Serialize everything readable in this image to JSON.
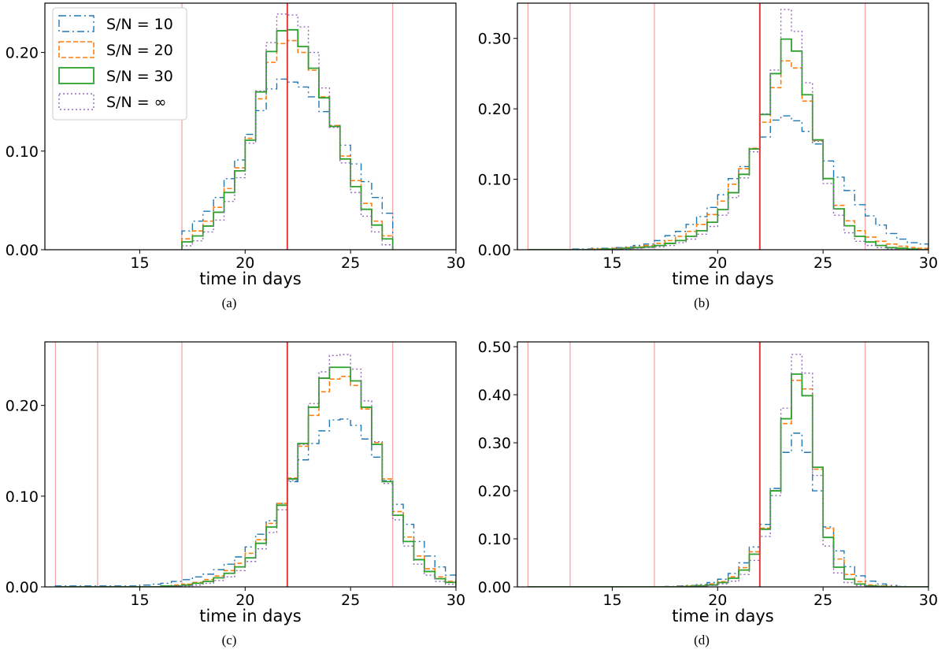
{
  "chart_data": [
    {
      "type": "step-histogram",
      "caption": "(a)",
      "xlabel": "time in days",
      "ylabel": "",
      "xlim": [
        10.5,
        30
      ],
      "ylim": [
        0,
        0.25
      ],
      "xticks": [
        "15",
        "20",
        "25",
        "30"
      ],
      "yticks": [
        "0.00",
        "0.10",
        "0.20"
      ],
      "bins_start": 17,
      "bin_width": 0.5,
      "vlines_light": [
        17,
        27
      ],
      "vline_main": 22,
      "legend": {
        "placement": "top-left",
        "entries": [
          "S/N = 10",
          "S/N = 20",
          "S/N = 30",
          "S/N = ∞"
        ]
      },
      "series": [
        {
          "name": "S/N = 10",
          "values": [
            0.019,
            0.029,
            0.039,
            0.053,
            0.072,
            0.091,
            0.117,
            0.141,
            0.163,
            0.173,
            0.17,
            0.165,
            0.155,
            0.14,
            0.126,
            0.106,
            0.087,
            0.069,
            0.053,
            0.037
          ]
        },
        {
          "name": "S/N = 20",
          "values": [
            0.011,
            0.019,
            0.029,
            0.043,
            0.062,
            0.083,
            0.113,
            0.153,
            0.19,
            0.209,
            0.212,
            0.2,
            0.182,
            0.155,
            0.126,
            0.095,
            0.07,
            0.047,
            0.029,
            0.014
          ]
        },
        {
          "name": "S/N = 30",
          "values": [
            0.008,
            0.014,
            0.024,
            0.038,
            0.058,
            0.08,
            0.111,
            0.16,
            0.201,
            0.222,
            0.223,
            0.206,
            0.184,
            0.154,
            0.125,
            0.092,
            0.064,
            0.041,
            0.025,
            0.011
          ]
        },
        {
          "name": "S/N = ∞",
          "values": [
            0.004,
            0.009,
            0.018,
            0.03,
            0.049,
            0.073,
            0.108,
            0.161,
            0.21,
            0.239,
            0.238,
            0.226,
            0.2,
            0.164,
            0.124,
            0.088,
            0.058,
            0.034,
            0.018,
            0.005
          ]
        }
      ]
    },
    {
      "type": "step-histogram",
      "caption": "(b)",
      "xlabel": "time in days",
      "ylabel": "",
      "xlim": [
        10.5,
        30
      ],
      "ylim": [
        0,
        0.35
      ],
      "xticks": [
        "15",
        "20",
        "25",
        "30"
      ],
      "yticks": [
        "0.00",
        "0.10",
        "0.20",
        "0.30"
      ],
      "bins_start": 11,
      "bin_width": 0.5,
      "vlines_light": [
        11,
        13,
        17,
        27
      ],
      "vline_main": 22,
      "series": [
        {
          "name": "S/N = 10",
          "values": [
            0,
            0,
            0,
            0,
            0.001,
            0.001,
            0.002,
            0.002,
            0.003,
            0.004,
            0.006,
            0.008,
            0.013,
            0.02,
            0.026,
            0.036,
            0.047,
            0.06,
            0.078,
            0.101,
            0.118,
            0.143,
            0.16,
            0.184,
            0.19,
            0.183,
            0.168,
            0.15,
            0.126,
            0.103,
            0.084,
            0.064,
            0.048,
            0.035,
            0.023,
            0.015,
            0.01,
            0.008,
            0.006,
            0.004,
            0.002,
            0.001
          ]
        },
        {
          "name": "S/N = 20",
          "values": [
            0,
            0,
            0,
            0,
            0,
            0,
            0.001,
            0.001,
            0.002,
            0.003,
            0.004,
            0.006,
            0.009,
            0.013,
            0.019,
            0.026,
            0.036,
            0.05,
            0.069,
            0.093,
            0.115,
            0.144,
            0.181,
            0.23,
            0.268,
            0.258,
            0.211,
            0.155,
            0.101,
            0.063,
            0.041,
            0.027,
            0.018,
            0.012,
            0.008,
            0.005,
            0.003,
            0.002,
            0.001,
            0,
            0,
            0
          ]
        },
        {
          "name": "S/N = 30",
          "values": [
            0,
            0,
            0,
            0,
            0,
            0,
            0,
            0.001,
            0.001,
            0.002,
            0.003,
            0.004,
            0.006,
            0.009,
            0.013,
            0.019,
            0.027,
            0.039,
            0.057,
            0.081,
            0.107,
            0.143,
            0.192,
            0.25,
            0.299,
            0.282,
            0.22,
            0.156,
            0.101,
            0.058,
            0.034,
            0.019,
            0.011,
            0.006,
            0.003,
            0.002,
            0.001,
            0,
            0,
            0,
            0,
            0
          ]
        },
        {
          "name": "S/N = ∞",
          "values": [
            0,
            0,
            0,
            0,
            0,
            0,
            0,
            0,
            0.001,
            0.001,
            0.002,
            0.003,
            0.004,
            0.006,
            0.01,
            0.015,
            0.022,
            0.033,
            0.049,
            0.074,
            0.102,
            0.139,
            0.193,
            0.255,
            0.341,
            0.31,
            0.237,
            0.154,
            0.094,
            0.049,
            0.024,
            0.012,
            0.006,
            0.003,
            0.001,
            0,
            0,
            0,
            0,
            0,
            0,
            0
          ]
        }
      ]
    },
    {
      "type": "step-histogram",
      "caption": "(c)",
      "xlabel": "time in days",
      "ylabel": "",
      "xlim": [
        10.5,
        30
      ],
      "ylim": [
        0,
        0.27
      ],
      "xticks": [
        "15",
        "20",
        "25",
        "30"
      ],
      "yticks": [
        "0.00",
        "0.10",
        "0.20"
      ],
      "bins_start": 11,
      "bin_width": 0.5,
      "vlines_light": [
        11,
        13,
        17,
        27
      ],
      "vline_main": 22,
      "series": [
        {
          "name": "S/N = 10",
          "values": [
            0.001,
            0.001,
            0.001,
            0.001,
            0.001,
            0.001,
            0.001,
            0.001,
            0.002,
            0.003,
            0.004,
            0.006,
            0.008,
            0.011,
            0.014,
            0.019,
            0.025,
            0.033,
            0.044,
            0.058,
            0.073,
            0.092,
            0.116,
            0.14,
            0.158,
            0.172,
            0.184,
            0.185,
            0.178,
            0.163,
            0.143,
            0.117,
            0.091,
            0.069,
            0.05,
            0.034,
            0.022,
            0.013,
            0.007,
            0.004,
            0.002,
            0.001
          ]
        },
        {
          "name": "S/N = 20",
          "values": [
            0,
            0,
            0,
            0,
            0,
            0,
            0,
            0,
            0,
            0,
            0.001,
            0.002,
            0.003,
            0.005,
            0.008,
            0.012,
            0.018,
            0.026,
            0.037,
            0.052,
            0.07,
            0.092,
            0.12,
            0.155,
            0.189,
            0.215,
            0.229,
            0.232,
            0.222,
            0.196,
            0.159,
            0.119,
            0.083,
            0.055,
            0.034,
            0.02,
            0.011,
            0.006,
            0.003,
            0.001,
            0,
            0
          ]
        },
        {
          "name": "S/N = 30",
          "values": [
            0,
            0,
            0,
            0,
            0,
            0,
            0,
            0,
            0,
            0,
            0.001,
            0.001,
            0.002,
            0.004,
            0.006,
            0.01,
            0.015,
            0.022,
            0.032,
            0.048,
            0.066,
            0.09,
            0.119,
            0.158,
            0.198,
            0.23,
            0.242,
            0.242,
            0.227,
            0.198,
            0.157,
            0.116,
            0.079,
            0.05,
            0.03,
            0.017,
            0.009,
            0.005,
            0.002,
            0.001,
            0,
            0
          ]
        },
        {
          "name": "S/N = ∞",
          "values": [
            0,
            0,
            0,
            0,
            0,
            0,
            0,
            0,
            0,
            0,
            0,
            0.001,
            0.001,
            0.002,
            0.004,
            0.007,
            0.011,
            0.018,
            0.028,
            0.042,
            0.06,
            0.085,
            0.117,
            0.157,
            0.202,
            0.237,
            0.255,
            0.256,
            0.24,
            0.205,
            0.16,
            0.114,
            0.074,
            0.045,
            0.025,
            0.013,
            0.006,
            0.003,
            0.001,
            0,
            0,
            0
          ]
        }
      ]
    },
    {
      "type": "step-histogram",
      "caption": "(d)",
      "xlabel": "time in days",
      "ylabel": "",
      "xlim": [
        10.5,
        30
      ],
      "ylim": [
        0,
        0.51
      ],
      "xticks": [
        "15",
        "20",
        "25",
        "30"
      ],
      "yticks": [
        "0.00",
        "0.10",
        "0.20",
        "0.30",
        "0.40",
        "0.50"
      ],
      "bins_start": 11,
      "bin_width": 0.5,
      "vlines_light": [
        11,
        13,
        17,
        27
      ],
      "vline_main": 22,
      "series": [
        {
          "name": "S/N = 10",
          "values": [
            0,
            0,
            0,
            0,
            0,
            0,
            0,
            0,
            0,
            0,
            0,
            0,
            0,
            0.001,
            0.002,
            0.003,
            0.005,
            0.009,
            0.016,
            0.028,
            0.05,
            0.083,
            0.13,
            0.205,
            0.28,
            0.32,
            0.28,
            0.2,
            0.125,
            0.075,
            0.042,
            0.023,
            0.012,
            0.006,
            0.003,
            0.001,
            0,
            0,
            0,
            0,
            0,
            0
          ]
        },
        {
          "name": "S/N = 20",
          "values": [
            0,
            0,
            0,
            0,
            0,
            0,
            0,
            0,
            0,
            0,
            0,
            0,
            0,
            0,
            0.001,
            0.002,
            0.003,
            0.006,
            0.011,
            0.021,
            0.04,
            0.073,
            0.122,
            0.2,
            0.34,
            0.43,
            0.412,
            0.245,
            0.122,
            0.058,
            0.026,
            0.011,
            0.004,
            0.002,
            0.001,
            0,
            0,
            0,
            0,
            0,
            0,
            0
          ]
        },
        {
          "name": "S/N = 30",
          "values": [
            0,
            0,
            0,
            0,
            0,
            0,
            0,
            0,
            0,
            0,
            0,
            0,
            0,
            0,
            0,
            0.001,
            0.002,
            0.004,
            0.009,
            0.018,
            0.035,
            0.068,
            0.12,
            0.2,
            0.35,
            0.443,
            0.398,
            0.249,
            0.103,
            0.041,
            0.016,
            0.006,
            0.002,
            0.001,
            0,
            0,
            0,
            0,
            0,
            0,
            0,
            0
          ]
        },
        {
          "name": "S/N = ∞",
          "values": [
            0,
            0,
            0,
            0,
            0,
            0,
            0,
            0,
            0,
            0,
            0,
            0,
            0,
            0,
            0,
            0,
            0.001,
            0.003,
            0.006,
            0.012,
            0.026,
            0.055,
            0.105,
            0.19,
            0.372,
            0.484,
            0.445,
            0.232,
            0.085,
            0.029,
            0.009,
            0.003,
            0.001,
            0,
            0,
            0,
            0,
            0,
            0,
            0,
            0,
            0
          ]
        }
      ]
    }
  ],
  "colors": {
    "sn10": "#1f77b4",
    "sn20": "#ff7f0e",
    "sn30": "#2ca02c",
    "sninf": "#9467bd",
    "vline_main": "#e03c3c",
    "vline_light": "#f5a0a0"
  }
}
